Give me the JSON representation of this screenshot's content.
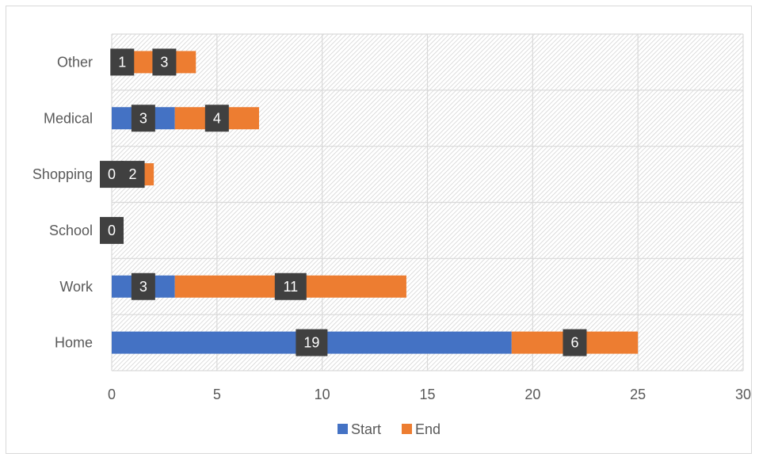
{
  "chart_data": {
    "type": "bar",
    "orientation": "horizontal",
    "stacked": true,
    "categories": [
      "Home",
      "Work",
      "School",
      "Shopping",
      "Medical",
      "Other"
    ],
    "series": [
      {
        "name": "Start",
        "values": [
          19,
          3,
          0,
          0,
          3,
          1
        ],
        "color": "#4472c4"
      },
      {
        "name": "End",
        "values": [
          6,
          11,
          0,
          2,
          4,
          3
        ],
        "color": "#ed7d31"
      }
    ],
    "xlim": [
      0,
      30
    ],
    "xticks": [
      0,
      5,
      10,
      15,
      20,
      25,
      30
    ],
    "grid": true,
    "legend_position": "bottom",
    "data_label_background": "#404040",
    "plot_background": "hatched-gray"
  }
}
